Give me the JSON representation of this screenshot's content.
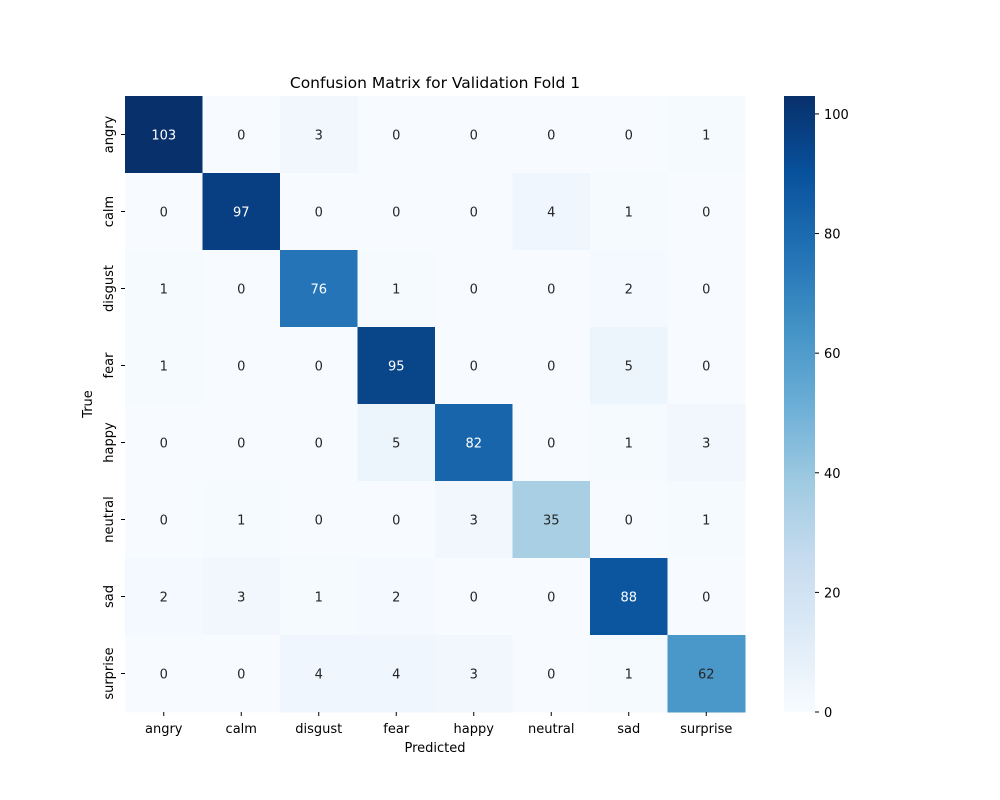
{
  "chart_data": {
    "type": "heatmap",
    "title": "Confusion Matrix for Validation Fold 1",
    "xlabel": "Predicted",
    "ylabel": "True",
    "x_categories": [
      "angry",
      "calm",
      "disgust",
      "fear",
      "happy",
      "neutral",
      "sad",
      "surprise"
    ],
    "y_categories": [
      "angry",
      "calm",
      "disgust",
      "fear",
      "happy",
      "neutral",
      "sad",
      "surprise"
    ],
    "values": [
      [
        103,
        0,
        3,
        0,
        0,
        0,
        0,
        1
      ],
      [
        0,
        97,
        0,
        0,
        0,
        4,
        1,
        0
      ],
      [
        1,
        0,
        76,
        1,
        0,
        0,
        2,
        0
      ],
      [
        1,
        0,
        0,
        95,
        0,
        0,
        5,
        0
      ],
      [
        0,
        0,
        0,
        5,
        82,
        0,
        1,
        3
      ],
      [
        0,
        1,
        0,
        0,
        3,
        35,
        0,
        1
      ],
      [
        2,
        3,
        1,
        2,
        0,
        0,
        88,
        0
      ],
      [
        0,
        0,
        4,
        4,
        3,
        0,
        1,
        62
      ]
    ],
    "colorbar": {
      "min": 0,
      "max": 103,
      "ticks": [
        0,
        20,
        40,
        60,
        80,
        100
      ]
    },
    "colormap": "Blues",
    "grid": false
  }
}
